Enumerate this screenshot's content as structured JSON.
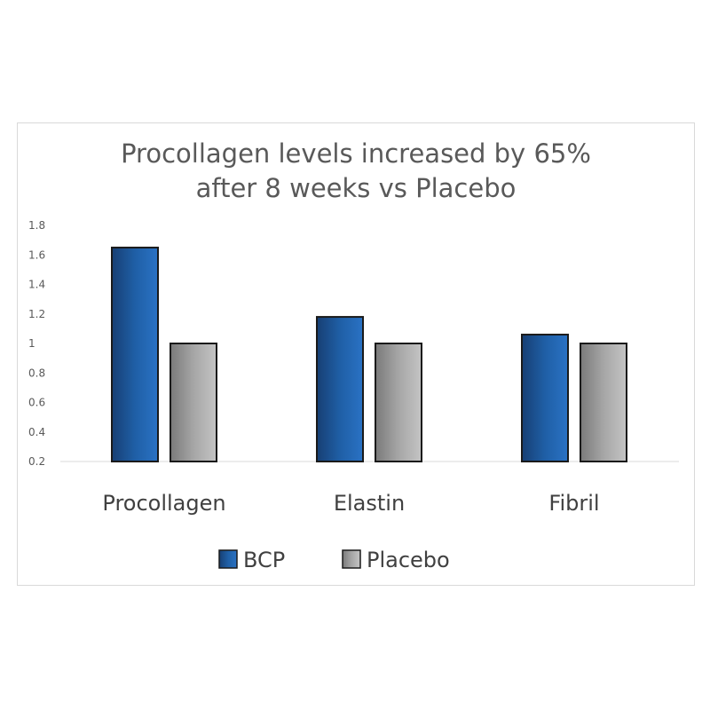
{
  "chart_data": {
    "type": "bar",
    "title_lines": [
      "Procollagen levels increased by 65%",
      "after 8 weeks vs Placebo"
    ],
    "categories": [
      "Procollagen",
      "Elastin",
      "Fibril"
    ],
    "series": [
      {
        "name": "BCP",
        "values": [
          1.65,
          1.18,
          1.06
        ],
        "color": "#1f5fa6"
      },
      {
        "name": "Placebo",
        "values": [
          1.0,
          1.0,
          1.0
        ],
        "color": "#a0a0a0"
      }
    ],
    "yticks": [
      "0.2",
      "0.4",
      "0.6",
      "0.8",
      "1",
      "1.2",
      "1.4",
      "1.6",
      "1.8"
    ],
    "ylim": [
      0.2,
      1.8
    ],
    "grid": false,
    "legend_position": "bottom"
  }
}
